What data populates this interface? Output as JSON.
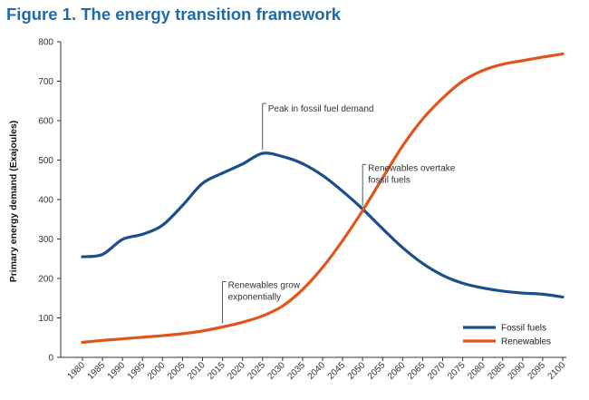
{
  "chart_data": {
    "type": "line",
    "title": "Figure 1. The energy transition framework",
    "ylabel": "Primary energy demand (Exajoules)",
    "xlabel": "",
    "ylim": [
      0,
      800
    ],
    "yticks": [
      0,
      100,
      200,
      300,
      400,
      500,
      600,
      700,
      800
    ],
    "xlim": [
      1980,
      2100
    ],
    "x": [
      1980,
      1985,
      1990,
      1995,
      2000,
      2005,
      2010,
      2015,
      2020,
      2025,
      2030,
      2035,
      2040,
      2045,
      2050,
      2055,
      2060,
      2065,
      2070,
      2075,
      2080,
      2085,
      2090,
      2095,
      2100
    ],
    "series": [
      {
        "name": "Fossil fuels",
        "color": "#1b4f8a",
        "values": [
          255,
          261,
          299,
          312,
          335,
          385,
          441,
          467,
          490,
          517,
          509,
          491,
          461,
          421,
          376,
          326,
          278,
          238,
          208,
          188,
          176,
          168,
          163,
          160,
          153
        ]
      },
      {
        "name": "Renewables",
        "color": "#e0551e",
        "values": [
          38,
          43,
          47,
          51,
          55,
          60,
          67,
          77,
          89,
          105,
          130,
          172,
          228,
          296,
          372,
          455,
          536,
          604,
          657,
          700,
          727,
          743,
          752,
          761,
          769
        ]
      }
    ],
    "annotations": [
      {
        "text": [
          "Peak in fossil fuel demand"
        ],
        "x": 2025,
        "y": 517
      },
      {
        "text": [
          "Renewables overtake",
          "fossil fuels"
        ],
        "x": 2050,
        "y": 374
      },
      {
        "text": [
          "Renewables grow",
          "exponentially"
        ],
        "x": 2015,
        "y": 77
      }
    ],
    "legend_position": "bottom-right",
    "grid": false
  }
}
